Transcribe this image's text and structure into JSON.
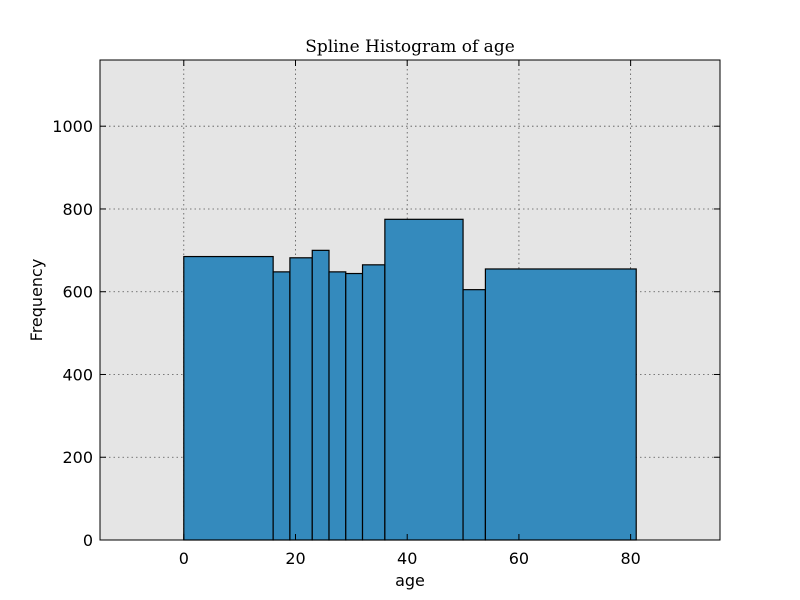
{
  "chart_data": {
    "type": "bar",
    "title": "Spline Histogram of age",
    "xlabel": "age",
    "ylabel": "Frequency",
    "xlim": [
      -15,
      96
    ],
    "ylim": [
      0,
      1160
    ],
    "xticks": [
      0,
      20,
      40,
      60,
      80
    ],
    "yticks": [
      0,
      200,
      400,
      600,
      800,
      1000
    ],
    "grid": true,
    "background": "#e5e5e5",
    "bar_color": "#348abd",
    "bins": [
      {
        "x0": 0,
        "x1": 16,
        "value": 685
      },
      {
        "x0": 16,
        "x1": 19,
        "value": 648
      },
      {
        "x0": 19,
        "x1": 23,
        "value": 682
      },
      {
        "x0": 23,
        "x1": 26,
        "value": 700
      },
      {
        "x0": 26,
        "x1": 29,
        "value": 648
      },
      {
        "x0": 29,
        "x1": 32,
        "value": 644
      },
      {
        "x0": 32,
        "x1": 36,
        "value": 665
      },
      {
        "x0": 36,
        "x1": 50,
        "value": 775
      },
      {
        "x0": 50,
        "x1": 54,
        "value": 605
      },
      {
        "x0": 54,
        "x1": 81,
        "value": 655
      }
    ]
  }
}
